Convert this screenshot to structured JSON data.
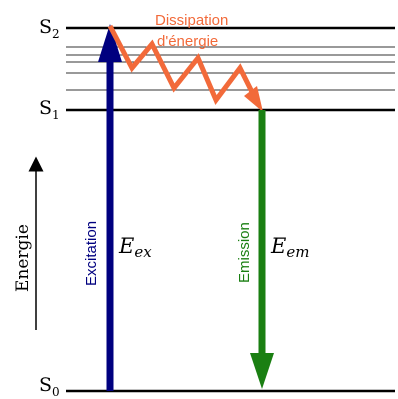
{
  "levels": {
    "s2": {
      "base": "S",
      "sub": "2"
    },
    "s1": {
      "base": "S",
      "sub": "1"
    },
    "s0": {
      "base": "S",
      "sub": "0"
    }
  },
  "energy_axis_label": "Energie",
  "dissipation_label": [
    "Dissipation",
    "d'énergie"
  ],
  "excitation": {
    "label": "Excitation",
    "energy_base": "E",
    "energy_sub": "ex"
  },
  "emission": {
    "label": "Emission",
    "energy_base": "E",
    "energy_sub": "em"
  },
  "colors": {
    "excitation": "#00007f",
    "emission": "#1a7f12",
    "dissipation": "#f26a3a",
    "levels": "#000000",
    "vibrational_levels": "#333333"
  }
}
